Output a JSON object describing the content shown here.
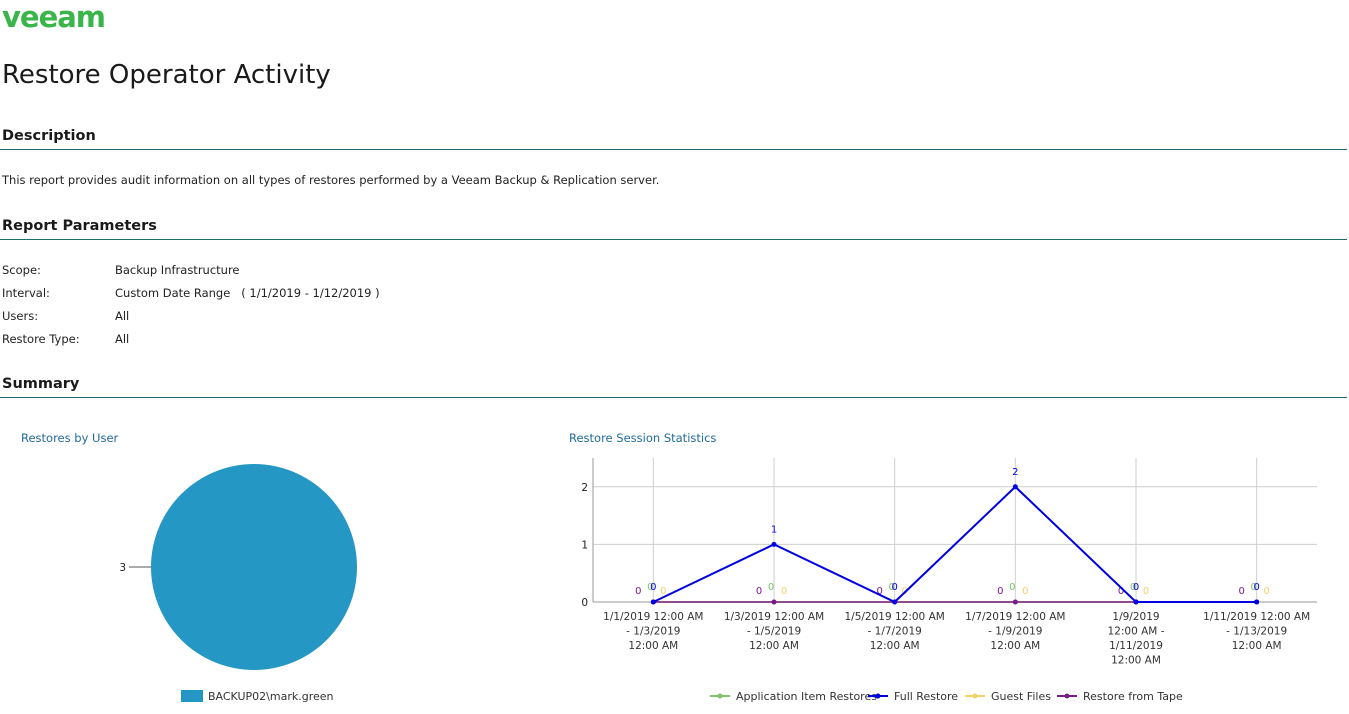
{
  "header": {
    "logo_text": "veeam",
    "brand_color": "#39b54a"
  },
  "page": {
    "title": "Restore Operator Activity"
  },
  "description": {
    "heading": "Description",
    "text": "This report provides audit information on all types of restores performed by a Veeam Backup & Replication server."
  },
  "parameters": {
    "heading": "Report Parameters",
    "rows": [
      {
        "label": "Scope:",
        "value": "Backup Infrastructure"
      },
      {
        "label": "Interval:",
        "value": "Custom Date Range   ( 1/1/2019 - 1/12/2019 )"
      },
      {
        "label": "Users:",
        "value": "All"
      },
      {
        "label": "Restore Type:",
        "value": "All"
      }
    ]
  },
  "summary": {
    "heading": "Summary"
  },
  "chart_data": [
    {
      "type": "pie",
      "title": "Restores by User",
      "slices": [
        {
          "label": "BACKUP02\\mark.green",
          "value": 3,
          "color": "#2597c4"
        }
      ],
      "legend": "bottom"
    },
    {
      "type": "line",
      "title": "Restore Session Statistics",
      "categories": [
        "1/1/2019 12:00 AM - 1/3/2019 12:00 AM",
        "1/3/2019 12:00 AM - 1/5/2019 12:00 AM",
        "1/5/2019 12:00 AM - 1/7/2019 12:00 AM",
        "1/7/2019 12:00 AM - 1/9/2019 12:00 AM",
        "1/9/2019 12:00 AM - 1/11/2019 12:00 AM",
        "1/11/2019 12:00 AM - 1/13/2019 12:00 AM"
      ],
      "category_lines": [
        [
          "1/1/2019 12:00 AM",
          "- 1/3/2019",
          "12:00 AM"
        ],
        [
          "1/3/2019 12:00 AM",
          "- 1/5/2019",
          "12:00 AM"
        ],
        [
          "1/5/2019 12:00 AM",
          "- 1/7/2019",
          "12:00 AM"
        ],
        [
          "1/7/2019 12:00 AM",
          "- 1/9/2019",
          "12:00 AM"
        ],
        [
          "1/9/2019",
          "12:00 AM -",
          "1/11/2019",
          "12:00 AM"
        ],
        [
          "1/11/2019 12:00 AM",
          "- 1/13/2019",
          "12:00 AM"
        ]
      ],
      "series": [
        {
          "name": "Application Item Restores",
          "values": [
            0,
            0,
            0,
            0,
            0,
            0
          ],
          "color": "#7dc36b"
        },
        {
          "name": "Full Restore",
          "values": [
            0,
            1,
            0,
            2,
            0,
            0
          ],
          "color": "#0000e0"
        },
        {
          "name": "Guest Files",
          "values": [
            0,
            0,
            0,
            0,
            0,
            0
          ],
          "color": "#f2d06b"
        },
        {
          "name": "Restore from Tape",
          "values": [
            0,
            0,
            0,
            0,
            0,
            0
          ],
          "color": "#7a1a8c"
        }
      ],
      "y_ticks": [
        0,
        1,
        2
      ],
      "ylim": [
        0,
        2.5
      ],
      "grid": true,
      "legend": "bottom"
    }
  ]
}
